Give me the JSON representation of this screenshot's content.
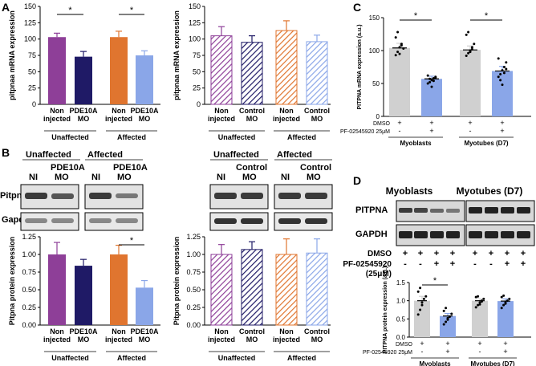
{
  "chart_data": [
    {
      "panel": "A",
      "type": "bar",
      "ylabel": "pitpnaa mRNA expression",
      "ylim": [
        0,
        150
      ],
      "yticks": [
        "0",
        "25",
        "50",
        "75",
        "100",
        "125",
        "150"
      ],
      "categories": [
        "Non injected",
        "PDE10A MO",
        "Non injected",
        "PDE10A MO"
      ],
      "category_lines": [
        [
          "Non",
          "injected"
        ],
        [
          "PDE10A",
          "MO"
        ],
        [
          "Non",
          "injected"
        ],
        [
          "PDE10A",
          "MO"
        ]
      ],
      "groups": [
        "Unaffected",
        "Affected"
      ],
      "values": [
        103,
        73,
        103,
        75
      ],
      "errors": [
        6,
        8,
        9,
        7
      ],
      "colors": [
        "#8e3f98",
        "#1f1a66",
        "#e0752f",
        "#8aa6e8"
      ],
      "significance": [
        {
          "bars": [
            0,
            1
          ],
          "label": "*"
        },
        {
          "bars": [
            2,
            3
          ],
          "label": "*"
        }
      ]
    },
    {
      "panel": "A2",
      "type": "bar",
      "hatched": true,
      "ylabel": "pitpnaa mRNA expression",
      "ylim": [
        0,
        150
      ],
      "yticks": [
        "0",
        "25",
        "50",
        "75",
        "100",
        "125",
        "150"
      ],
      "categories": [
        "Non injected",
        "Control MO",
        "Non injected",
        "Control MO"
      ],
      "category_lines": [
        [
          "Non",
          "injected"
        ],
        [
          "Control",
          "MO"
        ],
        [
          "Non",
          "injected"
        ],
        [
          "Control",
          "MO"
        ]
      ],
      "groups": [
        "Unaffected",
        "Affected"
      ],
      "values": [
        105,
        95,
        113,
        96
      ],
      "errors": [
        14,
        10,
        15,
        10
      ],
      "colors": [
        "#8e3f98",
        "#1f1a66",
        "#e0752f",
        "#8aa6e8"
      ],
      "significance": []
    },
    {
      "panel": "C",
      "type": "bar",
      "points": true,
      "ylabel": "PITPNA mRNA expression (a.u.)",
      "ylim": [
        0,
        150
      ],
      "yticks": [
        "0",
        "50",
        "100",
        "150"
      ],
      "treatment_rows": [
        {
          "label": "DMSO",
          "signs": [
            "+",
            "+",
            "+",
            "+"
          ]
        },
        {
          "label": "PF-02545920 25μM",
          "signs": [
            "-",
            "+",
            "-",
            "+"
          ]
        }
      ],
      "groups": [
        "Myoblasts",
        "Myotubes (D7)"
      ],
      "values": [
        104,
        57,
        101,
        69
      ],
      "errors": [
        7,
        4,
        6,
        7
      ],
      "colors": [
        "#d0d0d0",
        "#8aa6e8",
        "#d0d0d0",
        "#8aa6e8"
      ],
      "points_data": [
        [
          93,
          98,
          105,
          110,
          103,
          120,
          128,
          95,
          108
        ],
        [
          50,
          52,
          55,
          58,
          60,
          62,
          57,
          45,
          54,
          59
        ],
        [
          92,
          96,
          100,
          105,
          110,
          124,
          128,
          98,
          102
        ],
        [
          60,
          64,
          70,
          75,
          82,
          88,
          55,
          48,
          66,
          72
        ]
      ],
      "significance": [
        {
          "bars": [
            0,
            1
          ],
          "label": "*"
        },
        {
          "bars": [
            2,
            3
          ],
          "label": "*"
        }
      ]
    },
    {
      "panel": "B",
      "type": "bar",
      "ylabel": "Pitpna protein expression",
      "ylim": [
        0,
        1.25
      ],
      "yticks": [
        "0.00",
        "0.25",
        "0.50",
        "0.75",
        "1.00",
        "1.25"
      ],
      "categories": [
        "Non injected",
        "PDE10A MO",
        "Non injected",
        "PDE10A MO"
      ],
      "category_lines": [
        [
          "Non",
          "injected"
        ],
        [
          "PDE10A",
          "MO"
        ],
        [
          "Non",
          "injected"
        ],
        [
          "PDE10A",
          "MO"
        ]
      ],
      "groups": [
        "Unaffected",
        "Affected"
      ],
      "values": [
        1.0,
        0.84,
        1.0,
        0.53
      ],
      "errors": [
        0.17,
        0.09,
        0.13,
        0.1
      ],
      "colors": [
        "#8e3f98",
        "#1f1a66",
        "#e0752f",
        "#8aa6e8"
      ],
      "significance": [
        {
          "bars": [
            2,
            3
          ],
          "label": "*"
        }
      ]
    },
    {
      "panel": "B2",
      "type": "bar",
      "hatched": true,
      "ylabel": "Pitpna protein expression",
      "ylim": [
        0,
        1.25
      ],
      "yticks": [
        "0.00",
        "0.25",
        "0.50",
        "0.75",
        "1.00",
        "1.25"
      ],
      "categories": [
        "Non injected",
        "Control MO",
        "Non injected",
        "Control MO"
      ],
      "category_lines": [
        [
          "Non",
          "injected"
        ],
        [
          "Control",
          "MO"
        ],
        [
          "Non",
          "injected"
        ],
        [
          "Control",
          "MO"
        ]
      ],
      "groups": [
        "Unaffected",
        "Affected"
      ],
      "values": [
        1.0,
        1.07,
        1.0,
        1.02
      ],
      "errors": [
        0.14,
        0.11,
        0.22,
        0.2
      ],
      "colors": [
        "#8e3f98",
        "#1f1a66",
        "#e0752f",
        "#8aa6e8"
      ],
      "significance": []
    },
    {
      "panel": "D",
      "type": "bar",
      "points": true,
      "ylabel": "PITPNA protein expression (a.u.)",
      "ylim": [
        0,
        1.5
      ],
      "yticks": [
        "0.0",
        "0.5",
        "1.0",
        "1.5"
      ],
      "treatment_rows": [
        {
          "label": "DMSO",
          "signs": [
            "+",
            "+",
            "+",
            "+"
          ]
        },
        {
          "label": "PF-02545920 25μM",
          "signs": [
            "-",
            "+",
            "-",
            "+"
          ]
        }
      ],
      "groups": [
        "Myoblasts",
        "Myotubes (D7)"
      ],
      "values": [
        1.0,
        0.58,
        1.0,
        0.99
      ],
      "errors": [
        0.12,
        0.07,
        0.05,
        0.06
      ],
      "colors": [
        "#d0d0d0",
        "#8aa6e8",
        "#d0d0d0",
        "#8aa6e8"
      ],
      "points_data": [
        [
          0.62,
          0.75,
          0.95,
          1.05,
          1.12,
          1.25,
          1.35,
          0.88
        ],
        [
          0.35,
          0.42,
          0.48,
          0.56,
          0.64,
          0.72,
          0.8,
          0.52
        ],
        [
          0.82,
          0.88,
          0.95,
          1.0,
          1.05,
          1.1,
          1.12,
          0.9,
          0.98
        ],
        [
          0.8,
          0.88,
          0.95,
          1.0,
          1.05,
          1.1,
          1.14,
          0.92
        ]
      ],
      "significance": [
        {
          "bars": [
            0,
            1
          ],
          "label": "*"
        }
      ]
    }
  ],
  "panel_labels": [
    "A",
    "B",
    "C",
    "D"
  ],
  "western_b": {
    "left_headers": {
      "group1": "Unaffected",
      "group2": "Affected"
    },
    "left_lanes": {
      "g1": [
        "NI",
        "MO"
      ],
      "g2": [
        "NI",
        "MO"
      ],
      "g1_top": "PDE10A",
      "g2_top": "PDE10A"
    },
    "right_headers": {
      "group1": "Unaffected",
      "group2": "Affected"
    },
    "right_lanes": {
      "g1": [
        "NI",
        "MO"
      ],
      "g2": [
        "NI",
        "MO"
      ],
      "g1_top": "Control",
      "g2_top": "Control"
    },
    "rows": [
      "Pitpna",
      "Gapdh"
    ]
  },
  "western_d": {
    "headers": [
      "Myoblasts",
      "Myotubes (D7)"
    ],
    "rows": [
      "PITPNA",
      "GAPDH"
    ],
    "treatment_rows": [
      {
        "label": "DMSO",
        "signs": [
          "+",
          "+",
          "+",
          "+",
          "+",
          "+",
          "+",
          "+"
        ]
      },
      {
        "label": "PF-02545920",
        "signs": [
          "-",
          "-",
          "+",
          "+",
          "-",
          "-",
          "+",
          "+"
        ]
      },
      {
        "label": "(25μM)",
        "signs": []
      }
    ]
  }
}
